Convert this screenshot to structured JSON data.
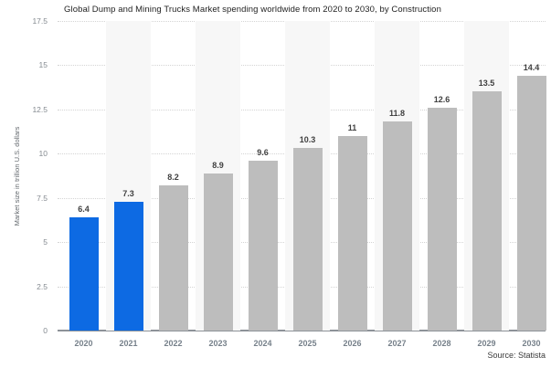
{
  "chart": {
    "title": "Global Dump and Mining Trucks Market spending worldwide from 2020 to 2030, by Construction",
    "y_axis_title": "Market size in trillion U.S. dollars",
    "source": "Source: Statista"
  },
  "chart_data": {
    "type": "bar",
    "title": "Global Dump and Mining Trucks Market spending worldwide from 2020 to 2030, by Construction",
    "categories": [
      "2020",
      "2021",
      "2022",
      "2023",
      "2024",
      "2025",
      "2026",
      "2027",
      "2028",
      "2029",
      "2030"
    ],
    "values": [
      6.4,
      7.3,
      8.2,
      8.9,
      9.6,
      10.3,
      11,
      11.8,
      12.6,
      13.5,
      14.4
    ],
    "value_labels": [
      "6.4",
      "7.3",
      "8.2",
      "8.9",
      "9.6",
      "10.3",
      "11",
      "11.8",
      "12.6",
      "13.5",
      "14.4"
    ],
    "xlabel": "",
    "ylabel": "Market size in trillion U.S. dollars",
    "ylim": [
      0,
      17.5
    ],
    "yticks": [
      0,
      2.5,
      5,
      7.5,
      10,
      12.5,
      15,
      17.5
    ],
    "ytick_labels": [
      "0",
      "2.5",
      "5",
      "7.5",
      "10",
      "12.5",
      "15",
      "17.5"
    ],
    "grid": "horizontal-dotted",
    "legend": "none",
    "colors": {
      "highlight_bar": "#0d6ae3",
      "default_bar": "#bdbdbd",
      "column_band": "#f7f7f7",
      "gridline": "#d4d4d4",
      "baseline": "#8d9298"
    },
    "highlight_indices": [
      0,
      1
    ],
    "band_indices": [
      1,
      3,
      5,
      7,
      9
    ],
    "source": "Source: Statista"
  }
}
